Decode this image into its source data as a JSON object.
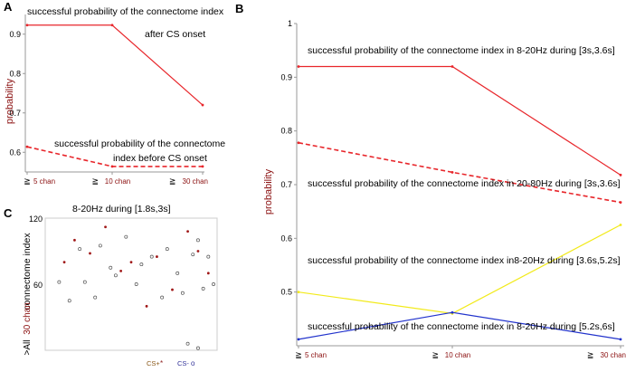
{
  "chart_data": [
    {
      "panel": "A",
      "type": "line",
      "ylabel": "probability",
      "categories": [
        "5 chan",
        "10 chan",
        "30 chan"
      ],
      "ylim": [
        0.55,
        0.95
      ],
      "yticks": [
        "0.6",
        "0.7",
        "0.8",
        "0.9"
      ],
      "series": [
        {
          "name": "after CS onset",
          "style": "solid",
          "color": "#e8262b",
          "values": [
            0.923,
            0.923,
            0.72
          ]
        },
        {
          "name": "before CS onset",
          "style": "dashed",
          "color": "#e8262b",
          "values": [
            0.614,
            0.564,
            0.564
          ]
        }
      ],
      "annotations": [
        "successful probability of the connectome index",
        "after CS onset",
        "successful probability of the connectome",
        "index before CS onset"
      ]
    },
    {
      "panel": "B",
      "type": "line",
      "ylabel": "probability",
      "categories": [
        "5 chan",
        "10 chan",
        "30 chan"
      ],
      "ylim": [
        0.4,
        1.0
      ],
      "yticks": [
        "0.5",
        "0.6",
        "0.7",
        "0.8",
        "0.9",
        "1"
      ],
      "series": [
        {
          "name": "8-20Hz during [3s,3.6s]",
          "style": "solid",
          "color": "#e8262b",
          "values": [
            0.92,
            0.92,
            0.718
          ]
        },
        {
          "name": "20-80Hz during [3s,3.6s]",
          "style": "dashed",
          "color": "#e8262b",
          "values": [
            0.778,
            0.723,
            0.667
          ]
        },
        {
          "name": "8-20Hz during [3.6s,5.2s]",
          "style": "solid",
          "color": "#f2ea1a",
          "values": [
            0.5,
            0.46,
            0.625
          ]
        },
        {
          "name": "8-20Hz during [5.2s,6s]",
          "style": "solid",
          "color": "#2233cc",
          "values": [
            0.412,
            0.462,
            0.412
          ]
        }
      ],
      "annotations": [
        "successful probability of the connectome index in 8-20Hz during [3s,3.6s]",
        "successful probability of the connectome index in 20-80Hz during [3s,3.6s]",
        "successful probability of the connectome index in8-20Hz during [3.6s,5.2s]",
        "successful probability of the connectome index in 8-20Hz during [5.2s,6s]"
      ]
    },
    {
      "panel": "C",
      "type": "scatter",
      "title": "8-20Hz during [1.8s,3s]",
      "ylabel": "connectome index",
      "ylabel_prefix": "30 chan",
      "ylabel_symbol": ">All",
      "ylim": [
        0,
        120
      ],
      "yticks": [
        "60",
        "120"
      ],
      "xlim": [
        0,
        32
      ],
      "legend": [
        {
          "label": "CS+",
          "marker": "*",
          "color": "#8b1a1a"
        },
        {
          "label": "CS-",
          "marker": "o",
          "color": "#333399"
        }
      ],
      "series": [
        {
          "name": "CS+",
          "points": [
            [
              3,
              80
            ],
            [
              5,
              100
            ],
            [
              8,
              88
            ],
            [
              11,
              112
            ],
            [
              14,
              72
            ],
            [
              16,
              80
            ],
            [
              19,
              40
            ],
            [
              21,
              85
            ],
            [
              24,
              55
            ],
            [
              27,
              108
            ],
            [
              29,
              90
            ],
            [
              31,
              70
            ]
          ]
        },
        {
          "name": "CS-",
          "points": [
            [
              2,
              62
            ],
            [
              4,
              45
            ],
            [
              6,
              92
            ],
            [
              7,
              62
            ],
            [
              9,
              48
            ],
            [
              10,
              95
            ],
            [
              12,
              75
            ],
            [
              13,
              68
            ],
            [
              15,
              103
            ],
            [
              17,
              60
            ],
            [
              18,
              78
            ],
            [
              20,
              85
            ],
            [
              22,
              48
            ],
            [
              23,
              92
            ],
            [
              25,
              70
            ],
            [
              26,
              52
            ],
            [
              28,
              87
            ],
            [
              29,
              100
            ],
            [
              30,
              56
            ],
            [
              31,
              85
            ],
            [
              32,
              60
            ],
            [
              27,
              6
            ],
            [
              29,
              2
            ]
          ]
        }
      ]
    }
  ]
}
